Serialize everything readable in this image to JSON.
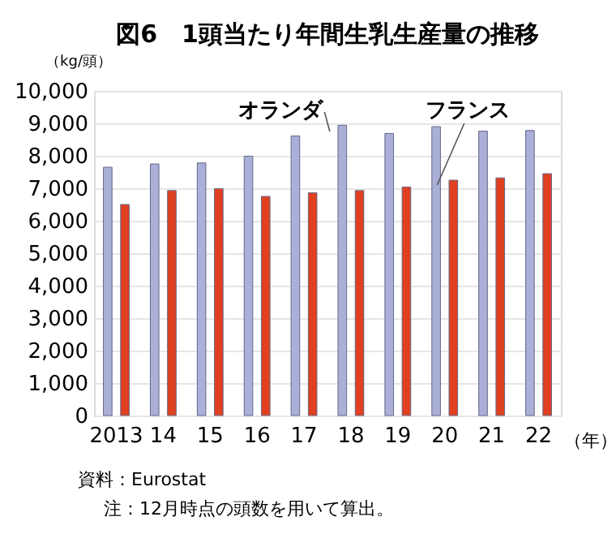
{
  "chart_data": {
    "type": "bar",
    "title": "図6　1頭当たり年間生乳生産量の推移",
    "ylabel": "（kg/頭）",
    "xlabel": "（年）",
    "categories": [
      "2013",
      "14",
      "15",
      "16",
      "17",
      "18",
      "19",
      "20",
      "21",
      "22"
    ],
    "series": [
      {
        "name": "オランダ",
        "color": "#aab0d8",
        "values": [
          7650,
          7750,
          7780,
          7990,
          8610,
          8940,
          8690,
          8900,
          8760,
          8780
        ]
      },
      {
        "name": "フランス",
        "color": "#e0401f",
        "values": [
          6500,
          6930,
          6990,
          6750,
          6860,
          6930,
          7040,
          7250,
          7320,
          7450
        ]
      }
    ],
    "ylim": [
      0,
      10000
    ],
    "yticks": [
      0,
      {
        "value": 1000,
        "label": "1,000"
      },
      {
        "value": 2000,
        "label": "2,000"
      },
      {
        "value": 3000,
        "label": "3,000"
      },
      {
        "value": 4000,
        "label": "4,000"
      },
      {
        "value": 5000,
        "label": "5,000"
      },
      {
        "value": 6000,
        "label": "6,000"
      },
      {
        "value": 7000,
        "label": "7,000"
      },
      {
        "value": 8000,
        "label": "8,000"
      },
      {
        "value": 9000,
        "label": "9,000"
      },
      {
        "value": 10000,
        "label": "10,000"
      }
    ],
    "grid": "y",
    "legend": false,
    "annotations": [
      "資料：Eurostat",
      "注：12月時点の頭数を用いて算出。"
    ]
  }
}
